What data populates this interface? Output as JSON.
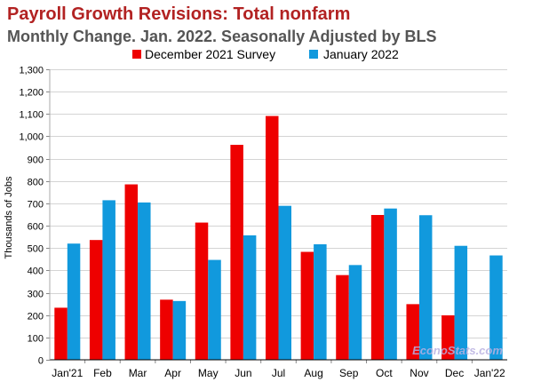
{
  "chart_data": {
    "type": "bar",
    "title": "Payroll Growth Revisions: Total nonfarm",
    "subtitle": "Monthly Change. Jan. 2022. Seasonally Adjusted by BLS",
    "xlabel": "",
    "ylabel": "Thousands of Jobs",
    "ylim": [
      0,
      1300
    ],
    "y_ticks": [
      "0",
      "100",
      "200",
      "300",
      "400",
      "500",
      "600",
      "700",
      "800",
      "900",
      "1,000",
      "1,100",
      "1,200",
      "1,300"
    ],
    "grid": true,
    "legend_position": "top",
    "categories": [
      "Jan'21",
      "Feb",
      "Mar",
      "Apr",
      "May",
      "Jun",
      "Jul",
      "Aug",
      "Sep",
      "Oct",
      "Nov",
      "Dec",
      "Jan'22"
    ],
    "series": [
      {
        "name": "December 2021 Survey",
        "color": "#ee0000",
        "values": [
          233,
          536,
          785,
          269,
          614,
          962,
          1091,
          483,
          379,
          648,
          249,
          199,
          null
        ]
      },
      {
        "name": "January 2022",
        "color": "#1199dd",
        "values": [
          520,
          714,
          704,
          263,
          447,
          557,
          689,
          517,
          424,
          677,
          647,
          510,
          467
        ]
      }
    ],
    "watermark": "EconoStats.com"
  }
}
